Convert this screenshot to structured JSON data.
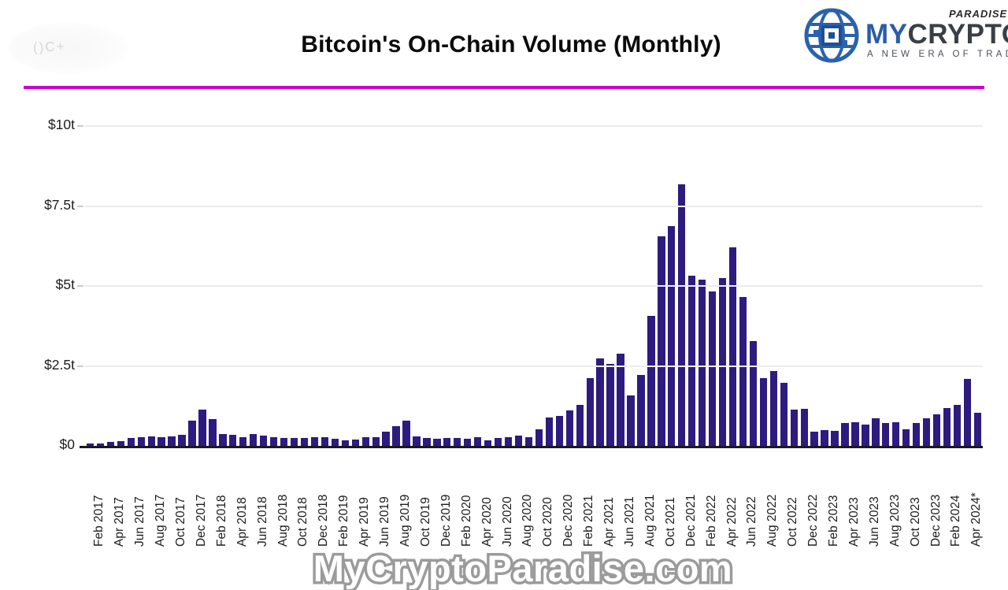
{
  "header": {
    "title": "Bitcoin's On-Chain Volume (Monthly)",
    "ghost_artifact_text": "()C+"
  },
  "logo": {
    "brand_primary": "MY",
    "brand_secondary": "CRYPTO",
    "brand_super": "PARADISE",
    "tagline": "A NEW ERA OF TRADING",
    "globe_color": "#2a62ab"
  },
  "divider_color": "#c903cf",
  "watermark": {
    "text": "MyCryptoParadise.com"
  },
  "chart_data": {
    "type": "bar",
    "title": "Bitcoin's On-Chain Volume (Monthly)",
    "bar_color": "#2e1b80",
    "grid": "horizontal-light",
    "legend": "none",
    "ylim": [
      0,
      10
    ],
    "y_ticks": [
      {
        "label": "$0",
        "value": 0
      },
      {
        "label": "$2.5t",
        "value": 2.5
      },
      {
        "label": "$5t",
        "value": 5
      },
      {
        "label": "$7.5t",
        "value": 7.5
      },
      {
        "label": "$10t",
        "value": 10
      }
    ],
    "x_tick_labels": [
      "Feb 2017",
      "Apr 2017",
      "Jun 2017",
      "Aug 2017",
      "Oct 2017",
      "Dec 2017",
      "Feb 2018",
      "Apr 2018",
      "Jun 2018",
      "Aug 2018",
      "Oct 2018",
      "Dec 2018",
      "Feb 2019",
      "Apr 2019",
      "Jun 2019",
      "Aug 2019",
      "Oct 2019",
      "Dec 2019",
      "Feb 2020",
      "Apr 2020",
      "Jun 2020",
      "Aug 2020",
      "Oct 2020",
      "Dec 2020",
      "Feb 2021",
      "Apr 2021",
      "Jun 2021",
      "Aug 2021",
      "Oct 2021",
      "Dec 2021",
      "Feb 2022",
      "Apr 2022",
      "Jun 2022",
      "Aug 2022",
      "Oct 2022",
      "Dec 2022",
      "Feb 2023",
      "Apr 2023",
      "Jun 2023",
      "Aug 2023",
      "Oct 2023",
      "Dec 2023",
      "Feb 2024",
      "Apr 2024*"
    ],
    "months": [
      "Jan 2017",
      "Feb 2017",
      "Mar 2017",
      "Apr 2017",
      "May 2017",
      "Jun 2017",
      "Jul 2017",
      "Aug 2017",
      "Sep 2017",
      "Oct 2017",
      "Nov 2017",
      "Dec 2017",
      "Jan 2018",
      "Feb 2018",
      "Mar 2018",
      "Apr 2018",
      "May 2018",
      "Jun 2018",
      "Jul 2018",
      "Aug 2018",
      "Sep 2018",
      "Oct 2018",
      "Nov 2018",
      "Dec 2018",
      "Jan 2019",
      "Feb 2019",
      "Mar 2019",
      "Apr 2019",
      "May 2019",
      "Jun 2019",
      "Jul 2019",
      "Aug 2019",
      "Sep 2019",
      "Oct 2019",
      "Nov 2019",
      "Dec 2019",
      "Jan 2020",
      "Feb 2020",
      "Mar 2020",
      "Apr 2020",
      "May 2020",
      "Jun 2020",
      "Jul 2020",
      "Aug 2020",
      "Sep 2020",
      "Oct 2020",
      "Nov 2020",
      "Dec 2020",
      "Jan 2021",
      "Feb 2021",
      "Mar 2021",
      "Apr 2021",
      "May 2021",
      "Jun 2021",
      "Jul 2021",
      "Aug 2021",
      "Sep 2021",
      "Oct 2021",
      "Nov 2021",
      "Dec 2021",
      "Jan 2022",
      "Feb 2022",
      "Mar 2022",
      "Apr 2022",
      "May 2022",
      "Jun 2022",
      "Jul 2022",
      "Aug 2022",
      "Sep 2022",
      "Oct 2022",
      "Nov 2022",
      "Dec 2022",
      "Jan 2023",
      "Feb 2023",
      "Mar 2023",
      "Apr 2023",
      "May 2023",
      "Jun 2023",
      "Jul 2023",
      "Aug 2023",
      "Sep 2023",
      "Oct 2023",
      "Nov 2023",
      "Dec 2023",
      "Jan 2024",
      "Feb 2024",
      "Mar 2024",
      "Apr 2024*"
    ],
    "values_trillion_usd": [
      0.07,
      0.08,
      0.13,
      0.16,
      0.25,
      0.27,
      0.3,
      0.27,
      0.3,
      0.35,
      0.78,
      1.13,
      0.84,
      0.37,
      0.34,
      0.28,
      0.36,
      0.31,
      0.26,
      0.25,
      0.25,
      0.25,
      0.26,
      0.26,
      0.23,
      0.17,
      0.19,
      0.26,
      0.28,
      0.44,
      0.62,
      0.79,
      0.3,
      0.25,
      0.23,
      0.25,
      0.25,
      0.21,
      0.27,
      0.17,
      0.25,
      0.27,
      0.31,
      0.28,
      0.51,
      0.88,
      0.93,
      1.1,
      1.28,
      2.13,
      2.74,
      2.56,
      2.87,
      1.57,
      2.21,
      4.06,
      6.54,
      6.87,
      8.17,
      5.31,
      5.2,
      4.82,
      5.25,
      6.21,
      4.65,
      3.28,
      2.13,
      2.35,
      1.96,
      1.14,
      1.17,
      0.45,
      0.5,
      0.48,
      0.71,
      0.73,
      0.67,
      0.87,
      0.72,
      0.73,
      0.51,
      0.72,
      0.87,
      0.98,
      1.18,
      1.28,
      2.09,
      1.03
    ]
  }
}
